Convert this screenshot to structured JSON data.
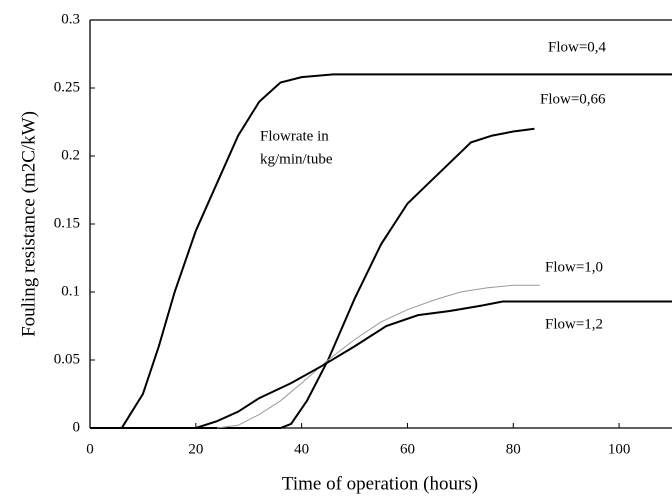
{
  "chart_data": {
    "type": "line",
    "xlabel": "Time of operation (hours)",
    "ylabel": "Fouling resistance (m2C/kW)",
    "annotation": [
      "Flowrate in",
      "kg/min/tube"
    ],
    "xlim": [
      0,
      110
    ],
    "ylim": [
      0,
      0.3
    ],
    "xticks": [
      0,
      20,
      40,
      60,
      80,
      100
    ],
    "yticks": [
      0,
      0.05,
      0.1,
      0.15,
      0.2,
      0.25,
      0.3
    ],
    "series": [
      {
        "name": "Flow=0,4",
        "color": "#000000",
        "x": [
          0,
          6,
          10,
          13,
          16,
          20,
          24,
          28,
          32,
          36,
          40,
          46,
          60,
          80,
          110
        ],
        "values": [
          0,
          0,
          0.025,
          0.06,
          0.1,
          0.145,
          0.18,
          0.215,
          0.24,
          0.254,
          0.258,
          0.26,
          0.26,
          0.26,
          0.26
        ]
      },
      {
        "name": "Flow=0,66",
        "color": "#000000",
        "x": [
          0,
          36,
          38,
          41,
          45,
          50,
          55,
          60,
          64,
          68,
          72,
          76,
          80,
          84
        ],
        "values": [
          0,
          0,
          0.003,
          0.02,
          0.05,
          0.095,
          0.135,
          0.165,
          0.18,
          0.195,
          0.21,
          0.215,
          0.218,
          0.22
        ]
      },
      {
        "name": "Flow=1,0",
        "color": "#9a9a9a",
        "x": [
          24,
          28,
          32,
          36,
          40,
          45,
          50,
          55,
          60,
          65,
          70,
          75,
          80,
          85
        ],
        "values": [
          0,
          0.002,
          0.01,
          0.02,
          0.033,
          0.05,
          0.065,
          0.078,
          0.087,
          0.094,
          0.1,
          0.103,
          0.105,
          0.105
        ]
      },
      {
        "name": "Flow=1,2",
        "color": "#000000",
        "x": [
          0,
          20,
          24,
          28,
          32,
          38,
          44,
          50,
          56,
          62,
          68,
          74,
          78,
          90,
          110
        ],
        "values": [
          0,
          0,
          0.005,
          0.012,
          0.022,
          0.033,
          0.046,
          0.06,
          0.075,
          0.083,
          0.086,
          0.09,
          0.093,
          0.093,
          0.093
        ]
      }
    ]
  }
}
